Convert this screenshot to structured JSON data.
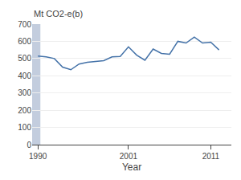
{
  "chart_data": {
    "type": "line",
    "ylabel": "Mt CO2-e(b)",
    "xlabel": "Year",
    "x": [
      1990,
      1991,
      1992,
      1993,
      1994,
      1995,
      1996,
      1997,
      1998,
      1999,
      2000,
      2001,
      2002,
      2003,
      2004,
      2005,
      2006,
      2007,
      2008,
      2009,
      2010,
      2011,
      2012
    ],
    "values": [
      515,
      510,
      500,
      450,
      435,
      468,
      478,
      482,
      488,
      510,
      512,
      568,
      520,
      490,
      555,
      530,
      525,
      600,
      590,
      625,
      590,
      595,
      550
    ],
    "color": "#4472a8",
    "highlight": {
      "x": [
        1989.3,
        1990.3
      ],
      "color": "#b8c4d8"
    },
    "xlim": [
      1989.3,
      2013.5
    ],
    "xticks": [
      1990,
      2001,
      2011
    ],
    "ylim": [
      0,
      700
    ],
    "yticks": [
      0,
      100,
      200,
      300,
      400,
      500,
      600,
      700
    ],
    "grid": true
  }
}
